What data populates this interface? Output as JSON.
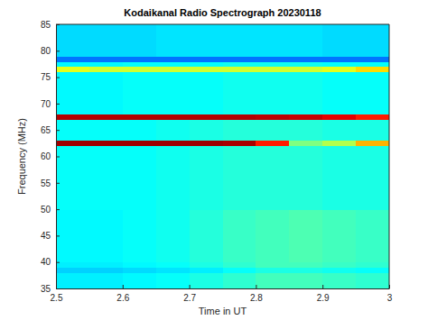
{
  "chart_data": {
    "type": "heatmap",
    "title": "Kodaikanal Radio Spectrograph  20230118",
    "x_label": "Time in UT",
    "y_label": "Frequency (MHz)",
    "xlim": [
      2.5,
      3
    ],
    "xticks": [
      2.5,
      2.6,
      2.7,
      2.8,
      2.9,
      3
    ],
    "ylim": [
      35,
      85
    ],
    "yticks": [
      35,
      40,
      45,
      50,
      55,
      60,
      65,
      70,
      75,
      80,
      85
    ],
    "x": [
      2.525,
      2.575,
      2.625,
      2.675,
      2.725,
      2.775,
      2.825,
      2.875,
      2.925,
      2.975
    ],
    "y": [
      35.5,
      36.5,
      37.5,
      38.5,
      39.5,
      40.5,
      41.5,
      42.5,
      43.5,
      44.5,
      45.5,
      46.5,
      47.5,
      48.5,
      49.5,
      50.5,
      51.5,
      52.5,
      53.5,
      54.5,
      55.5,
      56.5,
      57.5,
      58.5,
      59.5,
      60.5,
      61.5,
      62.5,
      63.5,
      64.5,
      65.5,
      66.5,
      67.5,
      68.5,
      69.5,
      70.5,
      71.5,
      72.5,
      73.5,
      74.5,
      75.5,
      76.5,
      77.5,
      78.5,
      79.5,
      80.5,
      81.5,
      82.5,
      83.5,
      84.5
    ],
    "zlim": [
      0,
      1
    ],
    "z": [
      [
        0.36,
        0.36,
        0.37,
        0.38,
        0.4,
        0.42,
        0.44,
        0.44,
        0.43,
        0.42
      ],
      [
        0.36,
        0.36,
        0.37,
        0.38,
        0.4,
        0.42,
        0.44,
        0.44,
        0.43,
        0.42
      ],
      [
        0.36,
        0.36,
        0.37,
        0.38,
        0.4,
        0.42,
        0.44,
        0.44,
        0.43,
        0.42
      ],
      [
        0.33,
        0.33,
        0.34,
        0.35,
        0.36,
        0.38,
        0.4,
        0.4,
        0.39,
        0.38
      ],
      [
        0.36,
        0.36,
        0.37,
        0.38,
        0.4,
        0.42,
        0.44,
        0.44,
        0.43,
        0.42
      ],
      [
        0.37,
        0.37,
        0.38,
        0.39,
        0.41,
        0.43,
        0.44,
        0.45,
        0.44,
        0.43
      ],
      [
        0.37,
        0.37,
        0.38,
        0.39,
        0.41,
        0.43,
        0.44,
        0.45,
        0.44,
        0.43
      ],
      [
        0.37,
        0.37,
        0.38,
        0.39,
        0.41,
        0.43,
        0.44,
        0.45,
        0.44,
        0.43
      ],
      [
        0.37,
        0.37,
        0.38,
        0.39,
        0.41,
        0.43,
        0.44,
        0.45,
        0.44,
        0.43
      ],
      [
        0.37,
        0.37,
        0.38,
        0.39,
        0.41,
        0.43,
        0.44,
        0.45,
        0.44,
        0.43
      ],
      [
        0.37,
        0.37,
        0.38,
        0.39,
        0.41,
        0.43,
        0.44,
        0.45,
        0.44,
        0.43
      ],
      [
        0.37,
        0.37,
        0.38,
        0.39,
        0.41,
        0.43,
        0.44,
        0.45,
        0.44,
        0.43
      ],
      [
        0.37,
        0.37,
        0.38,
        0.39,
        0.41,
        0.43,
        0.44,
        0.45,
        0.44,
        0.43
      ],
      [
        0.37,
        0.37,
        0.38,
        0.39,
        0.41,
        0.43,
        0.44,
        0.45,
        0.44,
        0.43
      ],
      [
        0.37,
        0.37,
        0.38,
        0.39,
        0.41,
        0.43,
        0.44,
        0.45,
        0.44,
        0.43
      ],
      [
        0.38,
        0.38,
        0.38,
        0.39,
        0.4,
        0.41,
        0.41,
        0.41,
        0.4,
        0.4
      ],
      [
        0.38,
        0.38,
        0.38,
        0.39,
        0.4,
        0.41,
        0.41,
        0.41,
        0.4,
        0.4
      ],
      [
        0.38,
        0.38,
        0.38,
        0.39,
        0.4,
        0.41,
        0.41,
        0.41,
        0.4,
        0.4
      ],
      [
        0.38,
        0.38,
        0.38,
        0.39,
        0.4,
        0.41,
        0.41,
        0.41,
        0.4,
        0.4
      ],
      [
        0.38,
        0.38,
        0.38,
        0.39,
        0.4,
        0.41,
        0.41,
        0.41,
        0.4,
        0.4
      ],
      [
        0.38,
        0.38,
        0.38,
        0.39,
        0.4,
        0.41,
        0.41,
        0.41,
        0.4,
        0.4
      ],
      [
        0.38,
        0.38,
        0.38,
        0.39,
        0.4,
        0.41,
        0.41,
        0.41,
        0.4,
        0.4
      ],
      [
        0.38,
        0.38,
        0.38,
        0.39,
        0.4,
        0.41,
        0.41,
        0.41,
        0.4,
        0.4
      ],
      [
        0.38,
        0.38,
        0.38,
        0.39,
        0.4,
        0.41,
        0.41,
        0.41,
        0.4,
        0.4
      ],
      [
        0.38,
        0.38,
        0.38,
        0.39,
        0.4,
        0.41,
        0.41,
        0.41,
        0.4,
        0.4
      ],
      [
        0.38,
        0.38,
        0.38,
        0.39,
        0.4,
        0.41,
        0.41,
        0.41,
        0.4,
        0.4
      ],
      [
        0.38,
        0.38,
        0.38,
        0.39,
        0.4,
        0.41,
        0.41,
        0.41,
        0.4,
        0.4
      ],
      [
        0.97,
        0.97,
        0.97,
        0.97,
        0.97,
        0.96,
        0.85,
        0.5,
        0.55,
        0.7
      ],
      [
        0.38,
        0.38,
        0.38,
        0.39,
        0.4,
        0.41,
        0.41,
        0.41,
        0.4,
        0.4
      ],
      [
        0.38,
        0.38,
        0.38,
        0.39,
        0.4,
        0.41,
        0.41,
        0.41,
        0.4,
        0.4
      ],
      [
        0.38,
        0.38,
        0.38,
        0.39,
        0.4,
        0.41,
        0.41,
        0.41,
        0.4,
        0.4
      ],
      [
        0.38,
        0.38,
        0.38,
        0.39,
        0.4,
        0.41,
        0.41,
        0.41,
        0.4,
        0.4
      ],
      [
        0.95,
        0.95,
        0.95,
        0.95,
        0.95,
        0.95,
        0.94,
        0.93,
        0.9,
        0.85
      ],
      [
        0.37,
        0.37,
        0.38,
        0.38,
        0.38,
        0.39,
        0.39,
        0.39,
        0.38,
        0.38
      ],
      [
        0.37,
        0.37,
        0.38,
        0.38,
        0.38,
        0.39,
        0.39,
        0.39,
        0.38,
        0.38
      ],
      [
        0.37,
        0.37,
        0.38,
        0.38,
        0.38,
        0.39,
        0.39,
        0.39,
        0.38,
        0.38
      ],
      [
        0.37,
        0.37,
        0.38,
        0.38,
        0.38,
        0.39,
        0.39,
        0.39,
        0.38,
        0.38
      ],
      [
        0.37,
        0.37,
        0.38,
        0.38,
        0.38,
        0.39,
        0.39,
        0.39,
        0.38,
        0.38
      ],
      [
        0.37,
        0.37,
        0.38,
        0.38,
        0.38,
        0.39,
        0.39,
        0.39,
        0.38,
        0.38
      ],
      [
        0.37,
        0.37,
        0.38,
        0.38,
        0.38,
        0.39,
        0.39,
        0.39,
        0.38,
        0.38
      ],
      [
        0.37,
        0.37,
        0.38,
        0.38,
        0.38,
        0.39,
        0.39,
        0.39,
        0.38,
        0.38
      ],
      [
        0.6,
        0.58,
        0.58,
        0.58,
        0.58,
        0.58,
        0.58,
        0.58,
        0.6,
        0.66
      ],
      [
        0.37,
        0.37,
        0.38,
        0.38,
        0.38,
        0.39,
        0.39,
        0.39,
        0.38,
        0.38
      ],
      [
        0.24,
        0.24,
        0.24,
        0.24,
        0.24,
        0.24,
        0.24,
        0.24,
        0.24,
        0.24
      ],
      [
        0.34,
        0.34,
        0.34,
        0.35,
        0.35,
        0.35,
        0.35,
        0.35,
        0.34,
        0.34
      ],
      [
        0.34,
        0.34,
        0.34,
        0.35,
        0.35,
        0.35,
        0.35,
        0.35,
        0.34,
        0.34
      ],
      [
        0.34,
        0.34,
        0.34,
        0.35,
        0.35,
        0.35,
        0.35,
        0.35,
        0.34,
        0.34
      ],
      [
        0.34,
        0.34,
        0.34,
        0.35,
        0.35,
        0.35,
        0.35,
        0.35,
        0.34,
        0.34
      ],
      [
        0.34,
        0.34,
        0.34,
        0.35,
        0.35,
        0.35,
        0.35,
        0.35,
        0.34,
        0.34
      ],
      [
        0.34,
        0.34,
        0.34,
        0.35,
        0.35,
        0.35,
        0.35,
        0.35,
        0.34,
        0.34
      ]
    ]
  }
}
